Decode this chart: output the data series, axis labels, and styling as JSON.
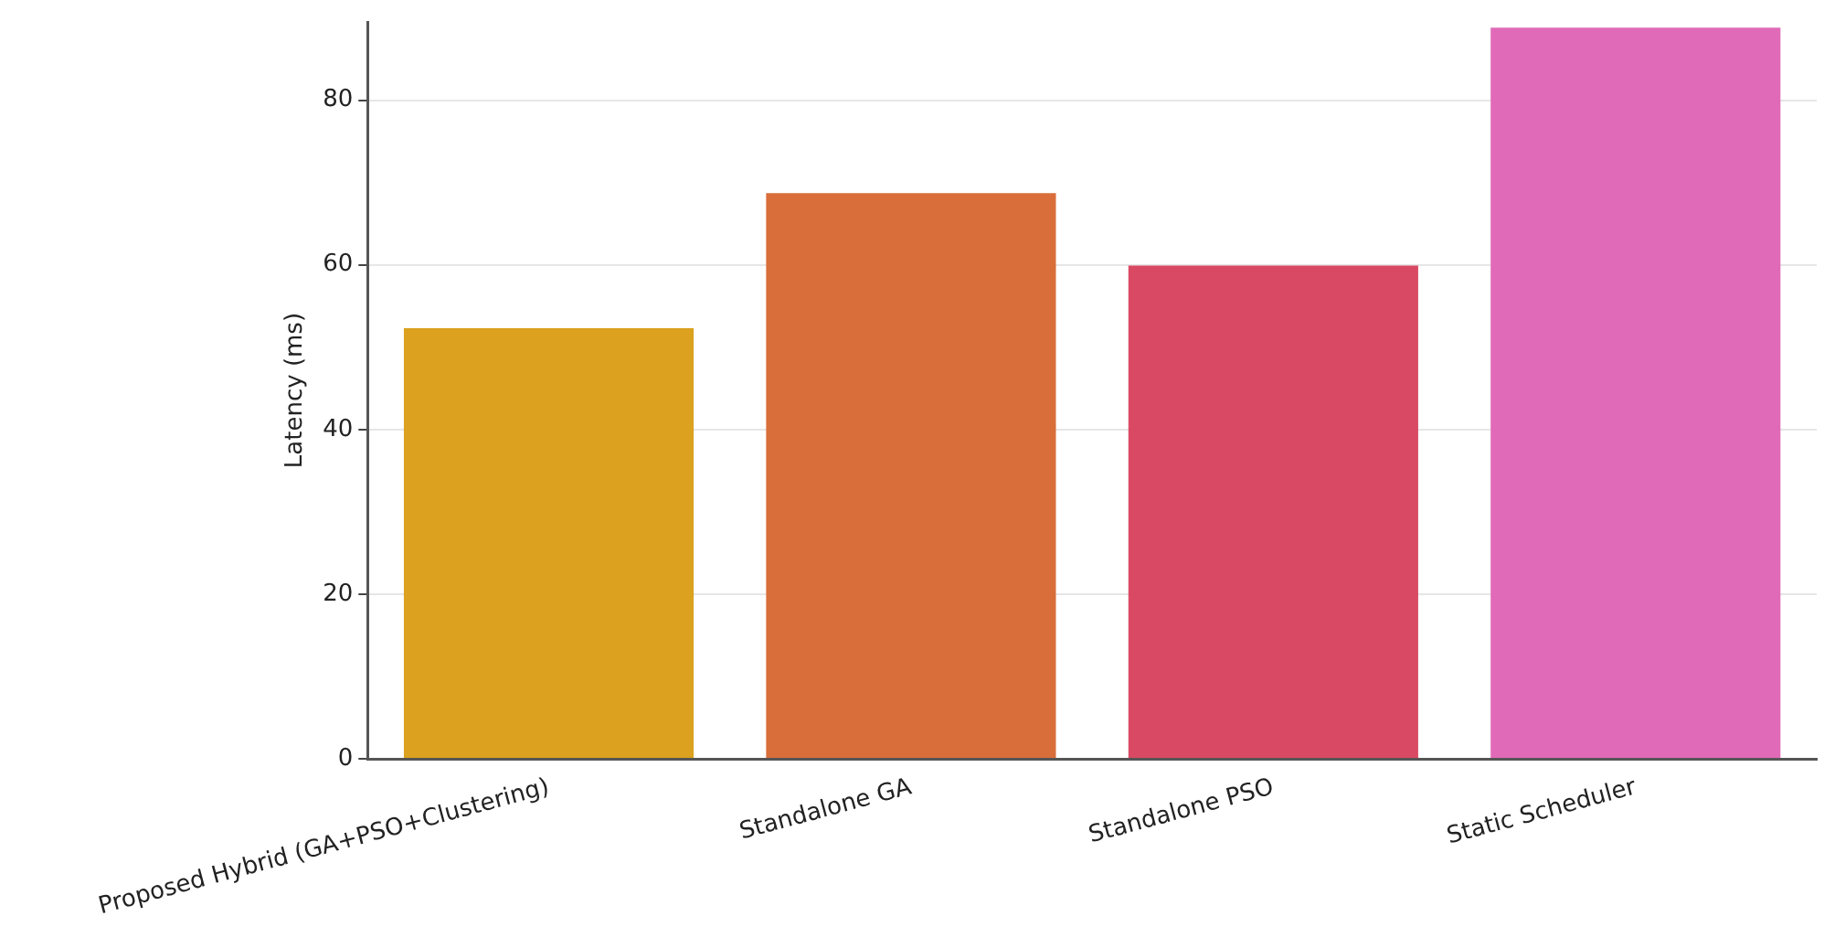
{
  "chart_data": {
    "type": "bar",
    "ylabel": "Latency (ms)",
    "categories": [
      "Proposed Hybrid (GA+PSO+Clustering)",
      "Standalone GA",
      "Standalone PSO",
      "Static Scheduler"
    ],
    "values": [
      52.3,
      68.7,
      59.9,
      88.8
    ],
    "colors": [
      "#dba11f",
      "#d96e3a",
      "#da4963",
      "#e06ab8"
    ],
    "ylim": [
      0,
      89.5
    ],
    "yticks": [
      0,
      20,
      40,
      60,
      80
    ],
    "grid": "y",
    "legend": false
  }
}
